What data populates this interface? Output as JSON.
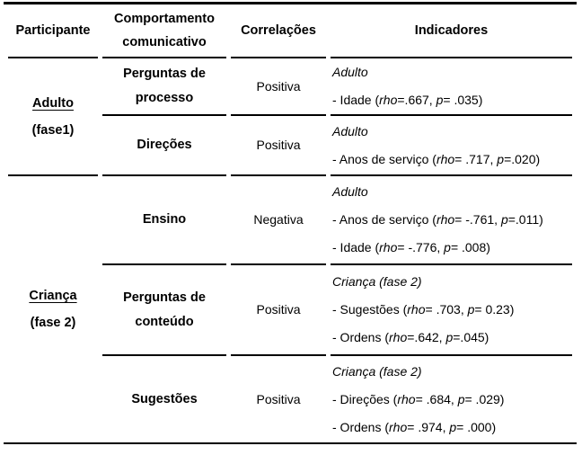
{
  "table": {
    "headers": [
      "Participante",
      "Comportamento comunicativo",
      "Correlações",
      "Indicadores"
    ],
    "sections": [
      {
        "participant": {
          "name": "Adulto",
          "phase": "(fase1)"
        },
        "rows": [
          {
            "behavior": "Perguntas de processo",
            "correlation": "Positiva",
            "group": "Adulto",
            "indicators": [
              [
                {
                  "t": "- Idade (",
                  "i": false
                },
                {
                  "t": "rho",
                  "i": true
                },
                {
                  "t": "=.667, ",
                  "i": false
                },
                {
                  "t": "p",
                  "i": true
                },
                {
                  "t": "= .035)",
                  "i": false
                }
              ]
            ]
          },
          {
            "behavior": "Direções",
            "correlation": "Positiva",
            "group": "Adulto",
            "indicators": [
              [
                {
                  "t": "- Anos de serviço (",
                  "i": false
                },
                {
                  "t": "rho",
                  "i": true
                },
                {
                  "t": "= .717, ",
                  "i": false
                },
                {
                  "t": "p",
                  "i": true
                },
                {
                  "t": "=.020)",
                  "i": false
                }
              ]
            ]
          }
        ]
      },
      {
        "participant": {
          "name": "Criança",
          "phase": "(fase 2)"
        },
        "rows": [
          {
            "behavior": "Ensino",
            "correlation": "Negativa",
            "group": "Adulto",
            "indicators": [
              [
                {
                  "t": "- Anos de serviço (",
                  "i": false
                },
                {
                  "t": "rho",
                  "i": true
                },
                {
                  "t": "= -.761, ",
                  "i": false
                },
                {
                  "t": "p",
                  "i": true
                },
                {
                  "t": "=.011)",
                  "i": false
                }
              ],
              [
                {
                  "t": "- Idade (",
                  "i": false
                },
                {
                  "t": "rho",
                  "i": true
                },
                {
                  "t": "= -.776, ",
                  "i": false
                },
                {
                  "t": "p",
                  "i": true
                },
                {
                  "t": "= .008)",
                  "i": false
                }
              ]
            ]
          },
          {
            "behavior": "Perguntas de conteúdo",
            "correlation": "Positiva",
            "group": "Criança (fase 2)",
            "indicators": [
              [
                {
                  "t": "- Sugestões (",
                  "i": false
                },
                {
                  "t": "rho",
                  "i": true
                },
                {
                  "t": "= .703, ",
                  "i": false
                },
                {
                  "t": "p",
                  "i": true
                },
                {
                  "t": "= 0.23)",
                  "i": false
                }
              ],
              [
                {
                  "t": "- Ordens (",
                  "i": false
                },
                {
                  "t": "rho",
                  "i": true
                },
                {
                  "t": "=.642, ",
                  "i": false
                },
                {
                  "t": "p",
                  "i": true
                },
                {
                  "t": "=.045)",
                  "i": false
                }
              ]
            ]
          },
          {
            "behavior": "Sugestões",
            "correlation": "Positiva",
            "group": "Criança (fase 2)",
            "indicators": [
              [
                {
                  "t": "- Direções (",
                  "i": false
                },
                {
                  "t": "rho",
                  "i": true
                },
                {
                  "t": "= .684, ",
                  "i": false
                },
                {
                  "t": "p",
                  "i": true
                },
                {
                  "t": "= .029)",
                  "i": false
                }
              ],
              [
                {
                  "t": "- Ordens (",
                  "i": false
                },
                {
                  "t": "rho",
                  "i": true
                },
                {
                  "t": "= .974, ",
                  "i": false
                },
                {
                  "t": "p",
                  "i": true
                },
                {
                  "t": "= .000)",
                  "i": false
                }
              ]
            ]
          }
        ]
      }
    ]
  }
}
